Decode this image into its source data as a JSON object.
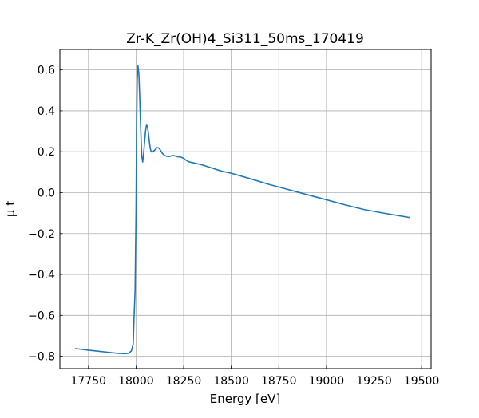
{
  "chart_data": {
    "type": "line",
    "title": "Zr-K_Zr(OH)4_Si311_50ms_170419",
    "xlabel": "Energy [eV]",
    "ylabel": "μ t",
    "xlim": [
      17600,
      19550
    ],
    "ylim": [
      -0.86,
      0.7
    ],
    "xticks": [
      17750,
      18000,
      18250,
      18500,
      18750,
      19000,
      19250,
      19500
    ],
    "xtick_labels": [
      "17750",
      "18000",
      "18250",
      "18500",
      "18750",
      "19000",
      "19250",
      "19500"
    ],
    "yticks": [
      -0.8,
      -0.6,
      -0.4,
      -0.2,
      0.0,
      0.2,
      0.4,
      0.6
    ],
    "ytick_labels": [
      "−0.8",
      "−0.6",
      "−0.4",
      "−0.2",
      "0.0",
      "0.2",
      "0.4",
      "0.6"
    ],
    "grid": true,
    "ticks_direction": "in",
    "series": [
      {
        "color": "#1f77b4",
        "x": [
          17680,
          17750,
          17800,
          17850,
          17900,
          17940,
          17960,
          17975,
          17985,
          17990,
          17995,
          18000,
          18003,
          18006,
          18010,
          18015,
          18020,
          18025,
          18030,
          18035,
          18040,
          18045,
          18050,
          18055,
          18060,
          18065,
          18070,
          18075,
          18080,
          18085,
          18090,
          18095,
          18100,
          18110,
          18120,
          18130,
          18140,
          18150,
          18160,
          18170,
          18180,
          18190,
          18200,
          18210,
          18220,
          18230,
          18240,
          18250,
          18260,
          18270,
          18280,
          18290,
          18300,
          18350,
          18400,
          18450,
          18500,
          18600,
          18700,
          18800,
          18900,
          19000,
          19100,
          19200,
          19300,
          19440
        ],
        "y": [
          -0.762,
          -0.77,
          -0.775,
          -0.78,
          -0.785,
          -0.787,
          -0.785,
          -0.775,
          -0.74,
          -0.6,
          -0.48,
          -0.1,
          0.3,
          0.55,
          0.62,
          0.58,
          0.45,
          0.3,
          0.18,
          0.15,
          0.19,
          0.25,
          0.3,
          0.33,
          0.325,
          0.29,
          0.25,
          0.215,
          0.2,
          0.198,
          0.202,
          0.205,
          0.21,
          0.22,
          0.218,
          0.205,
          0.19,
          0.182,
          0.178,
          0.176,
          0.178,
          0.181,
          0.181,
          0.178,
          0.175,
          0.175,
          0.172,
          0.168,
          0.16,
          0.155,
          0.15,
          0.148,
          0.146,
          0.135,
          0.12,
          0.105,
          0.095,
          0.068,
          0.04,
          0.015,
          -0.01,
          -0.035,
          -0.06,
          -0.083,
          -0.1,
          -0.122
        ]
      }
    ]
  }
}
